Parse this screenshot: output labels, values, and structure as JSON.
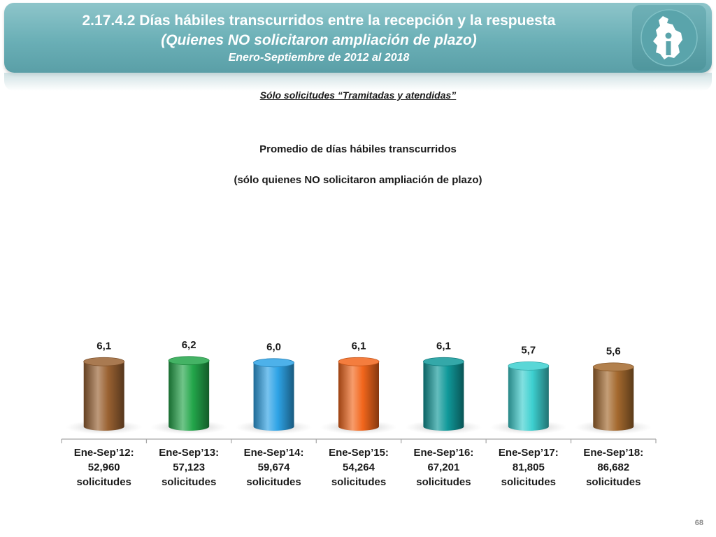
{
  "header": {
    "title": "2.17.4.2 Días hábiles transcurridos entre la recepción y la respuesta",
    "subtitle": "(Quienes NO solicitaron ampliación de plazo)",
    "period": "Enero-Septiembre de 2012 al 2018"
  },
  "note": "Sólo solicitudes “Tramitadas y atendidas”",
  "page_number": "68",
  "chart_data": {
    "type": "bar",
    "title": "Promedio de días hábiles transcurridos",
    "subtitle": "(sólo quienes NO solicitaron ampliación de plazo)",
    "categories": [
      [
        "Ene-Sep’12:",
        "52,960",
        "solicitudes"
      ],
      [
        "Ene-Sep’13:",
        "57,123",
        "solicitudes"
      ],
      [
        "Ene-Sep’14:",
        "59,674",
        "solicitudes"
      ],
      [
        "Ene-Sep’15:",
        "54,264",
        "solicitudes"
      ],
      [
        "Ene-Sep’16:",
        "67,201",
        "solicitudes"
      ],
      [
        "Ene-Sep’17:",
        "81,805",
        "solicitudes"
      ],
      [
        "Ene-Sep’18:",
        "86,682",
        "solicitudes"
      ]
    ],
    "values": [
      6.1,
      6.2,
      6.0,
      6.1,
      6.1,
      5.7,
      5.6
    ],
    "value_labels": [
      "6,1",
      "6,2",
      "6,0",
      "6,1",
      "6,1",
      "5,7",
      "5,6"
    ],
    "colors": [
      "#9a6232",
      "#23a64a",
      "#2ea3e6",
      "#f2661c",
      "#10999a",
      "#3dd0d0",
      "#a4692e"
    ],
    "xlabel": "",
    "ylabel": "",
    "grid": false,
    "legend": "none"
  }
}
